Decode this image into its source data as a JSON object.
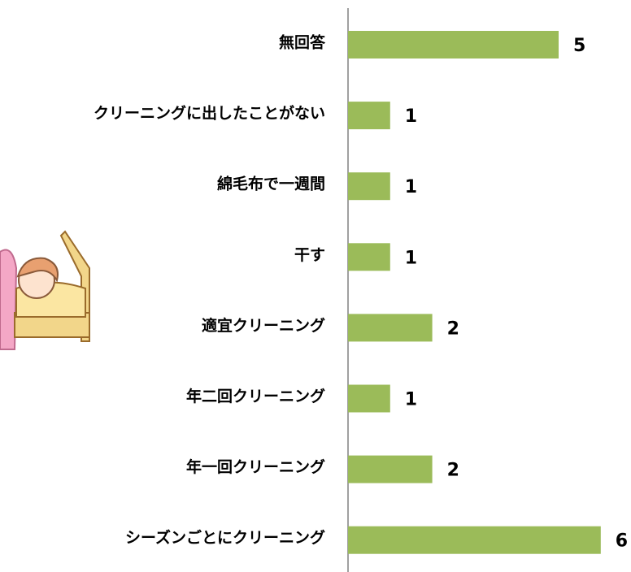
{
  "chart_data": {
    "type": "bar",
    "orientation": "horizontal",
    "categories": [
      "無回答",
      "クリーニングに出したことがない",
      "綿毛布で一週間",
      "干す",
      "適宜クリーニング",
      "年二回クリーニング",
      "年一回クリーニング",
      "シーズンごとにクリーニング"
    ],
    "values": [
      5,
      1,
      1,
      1,
      2,
      1,
      2,
      6
    ],
    "color": "#9bbb59"
  }
}
